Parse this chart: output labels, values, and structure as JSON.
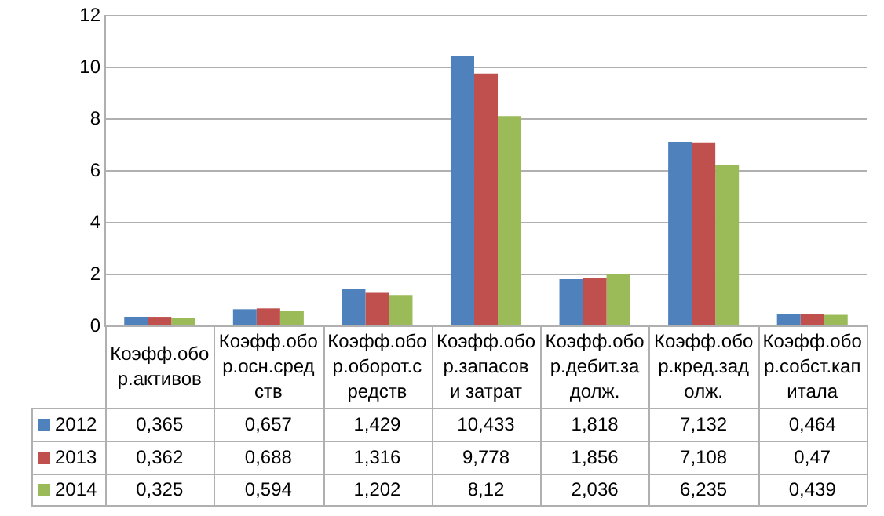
{
  "chart_data": {
    "type": "bar",
    "categories": [
      "Коэфф.обор.активов",
      "Коэфф.обор.осн.средств",
      "Коэфф.обор.оборот.средств",
      "Коэфф.обор.запасов и затрат",
      "Коэфф.обор.дебит.задолж.",
      "Коэфф.обор.кред.задолж.",
      "Коэфф.обор.собст.капитала"
    ],
    "series": [
      {
        "name": "2012",
        "color": "#4f81bd",
        "values": [
          0.365,
          0.657,
          1.429,
          10.433,
          1.818,
          7.132,
          0.464
        ],
        "value_labels": [
          "0,365",
          "0,657",
          "1,429",
          "10,433",
          "1,818",
          "7,132",
          "0,464"
        ]
      },
      {
        "name": "2013",
        "color": "#c0504d",
        "values": [
          0.362,
          0.688,
          1.316,
          9.778,
          1.856,
          7.108,
          0.47
        ],
        "value_labels": [
          "0,362",
          "0,688",
          "1,316",
          "9,778",
          "1,856",
          "7,108",
          "0,47"
        ]
      },
      {
        "name": "2014",
        "color": "#9bbb59",
        "values": [
          0.325,
          0.594,
          1.202,
          8.12,
          2.036,
          6.235,
          0.439
        ],
        "value_labels": [
          "0,325",
          "0,594",
          "1,202",
          "8,12",
          "2,036",
          "6,235",
          "0,439"
        ]
      }
    ],
    "ylim": [
      0,
      12
    ],
    "yticks": [
      0,
      2,
      4,
      6,
      8,
      10,
      12
    ],
    "grid": "y",
    "legend": "bottom"
  }
}
